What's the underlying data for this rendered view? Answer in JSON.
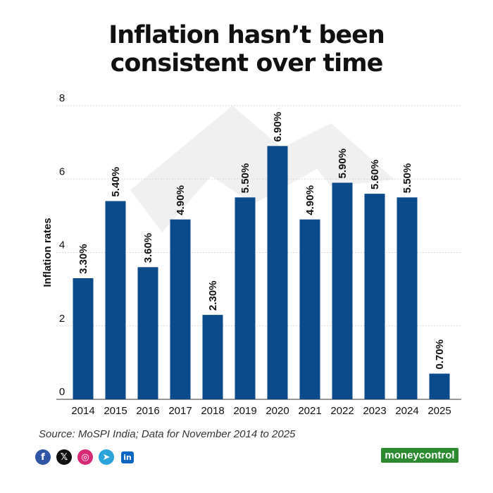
{
  "title_lines": [
    "Inflation hasn’t been",
    "consistent over time"
  ],
  "source": "Source: MoSPI India; Data for November 2014 to 2025",
  "brand": "moneycontrol",
  "social_icons": [
    "facebook-icon",
    "x-icon",
    "instagram-icon",
    "telegram-icon",
    "linkedin-icon"
  ],
  "colors": {
    "bar": "#0b4a8b",
    "brand": "#2b8a2f"
  },
  "chart_data": {
    "type": "bar",
    "title": "Inflation hasn’t been consistent over time",
    "xlabel": "",
    "ylabel": "Inflation rates",
    "ylim": [
      0,
      8
    ],
    "yticks": [
      0,
      2,
      4,
      6,
      8
    ],
    "grid": true,
    "categories": [
      "2014",
      "2015",
      "2016",
      "2017",
      "2018",
      "2019",
      "2020",
      "2021",
      "2022",
      "2023",
      "2024",
      "2025"
    ],
    "values": [
      3.3,
      5.4,
      3.6,
      4.9,
      2.3,
      5.5,
      6.9,
      4.9,
      5.9,
      5.6,
      5.5,
      0.7
    ],
    "data_labels": [
      "3.30%",
      "5.40%",
      "3.60%",
      "4.90%",
      "2.30%",
      "5.50%",
      "6.90%",
      "4.90%",
      "5.90%",
      "5.60%",
      "5.50%",
      "0.70%"
    ]
  }
}
